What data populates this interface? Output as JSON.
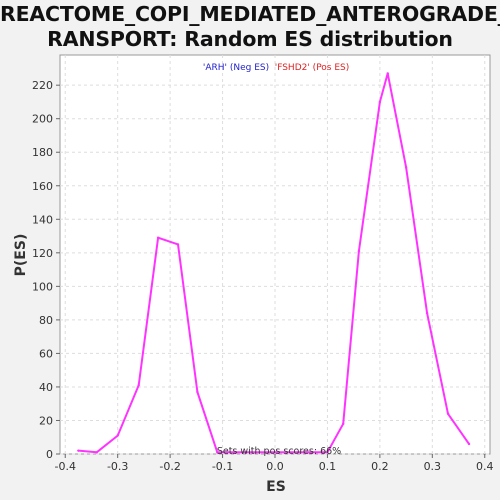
{
  "chart_data": {
    "type": "line",
    "title": "REACTOME_COPI_MEDIATED_ANTEROGRADE_T\nRANSPORT: Random ES distribution",
    "xlabel": "ES",
    "ylabel": "P(ES)",
    "xlim": [
      -0.41,
      0.41
    ],
    "ylim": [
      0,
      238
    ],
    "x_ticks": [
      "-0.4",
      "-0.3",
      "-0.2",
      "-0.1",
      "0.0",
      "0.1",
      "0.2",
      "0.3",
      "0.4"
    ],
    "y_ticks": [
      "0",
      "20",
      "40",
      "60",
      "80",
      "100",
      "120",
      "140",
      "160",
      "180",
      "200",
      "220"
    ],
    "grid": true,
    "series": [
      {
        "color": "#ff33ff",
        "x": [
          -0.375,
          -0.34,
          -0.3,
          -0.26,
          -0.223,
          -0.185,
          -0.148,
          -0.11,
          0.1,
          0.13,
          0.16,
          0.2,
          0.215,
          0.25,
          0.29,
          0.33,
          0.37
        ],
        "y": [
          2,
          1,
          11,
          41,
          129,
          125,
          37,
          1,
          1,
          18,
          121,
          210,
          227,
          171,
          84,
          24,
          6
        ]
      }
    ],
    "legend": [
      {
        "text": "'ARH' (Neg ES)",
        "color": "#2222cc"
      },
      {
        "text": "'FSHD2' (Pos ES)",
        "color": "#dd2222"
      }
    ],
    "annotation": "Sets with pos scores: 66%"
  }
}
